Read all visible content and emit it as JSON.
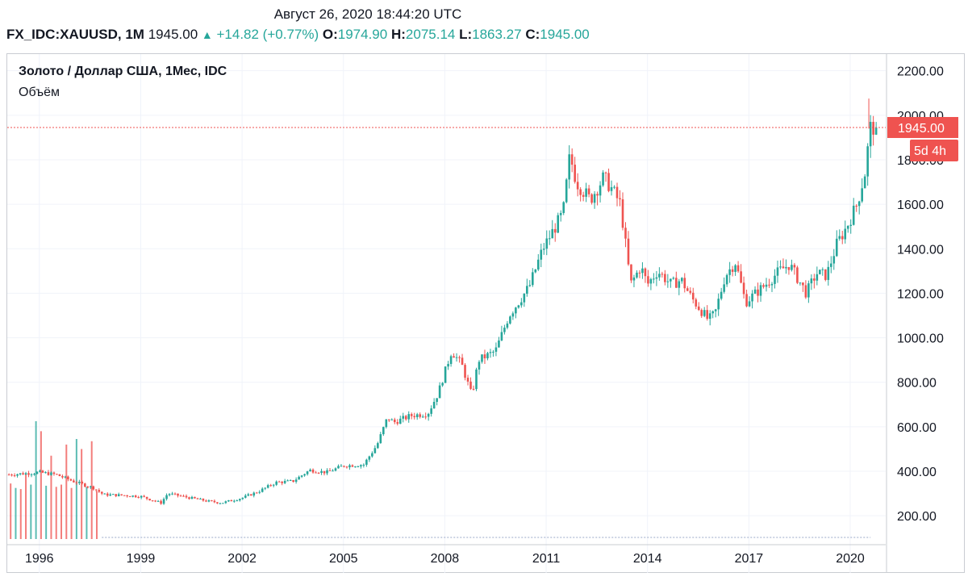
{
  "header": {
    "timestamp": "Август 26, 2020 18:44:20 UTC",
    "symbol": "FX_IDC:XAUUSD, 1M",
    "last": "1945.00",
    "change": "+14.82 (+0.77%)",
    "open_label": "O:",
    "open": "1974.90",
    "high_label": "H:",
    "high": "2075.14",
    "low_label": "L:",
    "low": "1863.27",
    "close_label": "C:",
    "close": "1945.00"
  },
  "legend": {
    "title": "Золото / Доллар США, 1Мес, IDC",
    "volume_label": "Объём"
  },
  "price_tag": {
    "value": "1945.00",
    "countdown": "5d 4h"
  },
  "colors": {
    "up": "#26a69a",
    "down": "#ef5350",
    "grid": "#f0f3fa",
    "axis_text": "#131722",
    "price_line": "#ef5350"
  },
  "chart_data": {
    "type": "candlestick",
    "title": "Золото / Доллар США, 1Мес, IDC",
    "ylim": [
      70,
      2275
    ],
    "xlim": [
      1995.05,
      2021.05
    ],
    "y_ticks": [
      200,
      400,
      600,
      800,
      1000,
      1200,
      1400,
      1600,
      1800,
      2000,
      2200
    ],
    "y_tick_labels": [
      "200.00",
      "400.00",
      "600.00",
      "800.00",
      "1000.00",
      "1200.00",
      "1400.00",
      "1600.00",
      "1800.00",
      "2000.00",
      "2200.00"
    ],
    "x_ticks": [
      1996,
      1999,
      2002,
      2005,
      2008,
      2011,
      2014,
      2017,
      2020
    ],
    "x_tick_labels": [
      "1996",
      "1999",
      "2002",
      "2005",
      "2008",
      "2011",
      "2014",
      "2017",
      "2020"
    ],
    "last_close": 1945.0,
    "price_anchors": [
      [
        1995.1,
        385
      ],
      [
        1996.0,
        395
      ],
      [
        1996.5,
        385
      ],
      [
        1997.0,
        355
      ],
      [
        1997.6,
        325
      ],
      [
        1997.9,
        295
      ],
      [
        1998.5,
        292
      ],
      [
        1999.0,
        287
      ],
      [
        1999.6,
        258
      ],
      [
        1999.8,
        300
      ],
      [
        2000.3,
        285
      ],
      [
        2001.0,
        265
      ],
      [
        2001.4,
        258
      ],
      [
        2002.0,
        280
      ],
      [
        2002.5,
        310
      ],
      [
        2003.0,
        350
      ],
      [
        2003.5,
        355
      ],
      [
        2004.0,
        405
      ],
      [
        2004.5,
        395
      ],
      [
        2005.0,
        425
      ],
      [
        2005.6,
        430
      ],
      [
        2006.0,
        520
      ],
      [
        2006.3,
        640
      ],
      [
        2006.5,
        620
      ],
      [
        2007.0,
        650
      ],
      [
        2007.5,
        660
      ],
      [
        2007.8,
        750
      ],
      [
        2008.2,
        940
      ],
      [
        2008.5,
        880
      ],
      [
        2008.8,
        740
      ],
      [
        2009.0,
        900
      ],
      [
        2009.5,
        940
      ],
      [
        2009.9,
        1100
      ],
      [
        2010.5,
        1230
      ],
      [
        2010.9,
        1400
      ],
      [
        2011.5,
        1560
      ],
      [
        2011.7,
        1820
      ],
      [
        2011.9,
        1700
      ],
      [
        2012.3,
        1620
      ],
      [
        2012.7,
        1720
      ],
      [
        2012.9,
        1680
      ],
      [
        2013.2,
        1600
      ],
      [
        2013.5,
        1240
      ],
      [
        2013.8,
        1320
      ],
      [
        2014.0,
        1240
      ],
      [
        2014.3,
        1300
      ],
      [
        2014.7,
        1240
      ],
      [
        2015.0,
        1260
      ],
      [
        2015.3,
        1180
      ],
      [
        2015.8,
        1080
      ],
      [
        2016.0,
        1110
      ],
      [
        2016.3,
        1280
      ],
      [
        2016.6,
        1340
      ],
      [
        2016.9,
        1160
      ],
      [
        2017.5,
        1240
      ],
      [
        2017.9,
        1300
      ],
      [
        2018.2,
        1330
      ],
      [
        2018.7,
        1200
      ],
      [
        2019.0,
        1290
      ],
      [
        2019.3,
        1280
      ],
      [
        2019.6,
        1420
      ],
      [
        2019.9,
        1500
      ],
      [
        2020.2,
        1600
      ],
      [
        2020.35,
        1690
      ],
      [
        2020.5,
        1780
      ],
      [
        2020.55,
        1980
      ],
      [
        2020.6,
        1945
      ]
    ],
    "volume_bars": [
      {
        "x": 1995.15,
        "v": 345,
        "dir": "down"
      },
      {
        "x": 1995.3,
        "v": 325,
        "dir": "up"
      },
      {
        "x": 1995.45,
        "v": 320,
        "dir": "down"
      },
      {
        "x": 1995.6,
        "v": 390,
        "dir": "down"
      },
      {
        "x": 1995.75,
        "v": 340,
        "dir": "up"
      },
      {
        "x": 1995.9,
        "v": 625,
        "dir": "up"
      },
      {
        "x": 1996.05,
        "v": 580,
        "dir": "down"
      },
      {
        "x": 1996.2,
        "v": 335,
        "dir": "up"
      },
      {
        "x": 1996.35,
        "v": 470,
        "dir": "down"
      },
      {
        "x": 1996.5,
        "v": 330,
        "dir": "down"
      },
      {
        "x": 1996.65,
        "v": 340,
        "dir": "down"
      },
      {
        "x": 1996.8,
        "v": 520,
        "dir": "down"
      },
      {
        "x": 1996.95,
        "v": 325,
        "dir": "down"
      },
      {
        "x": 1997.1,
        "v": 545,
        "dir": "up"
      },
      {
        "x": 1997.25,
        "v": 500,
        "dir": "down"
      },
      {
        "x": 1997.4,
        "v": 330,
        "dir": "up"
      },
      {
        "x": 1997.55,
        "v": 535,
        "dir": "down"
      },
      {
        "x": 1997.7,
        "v": 310,
        "dir": "down"
      }
    ]
  }
}
